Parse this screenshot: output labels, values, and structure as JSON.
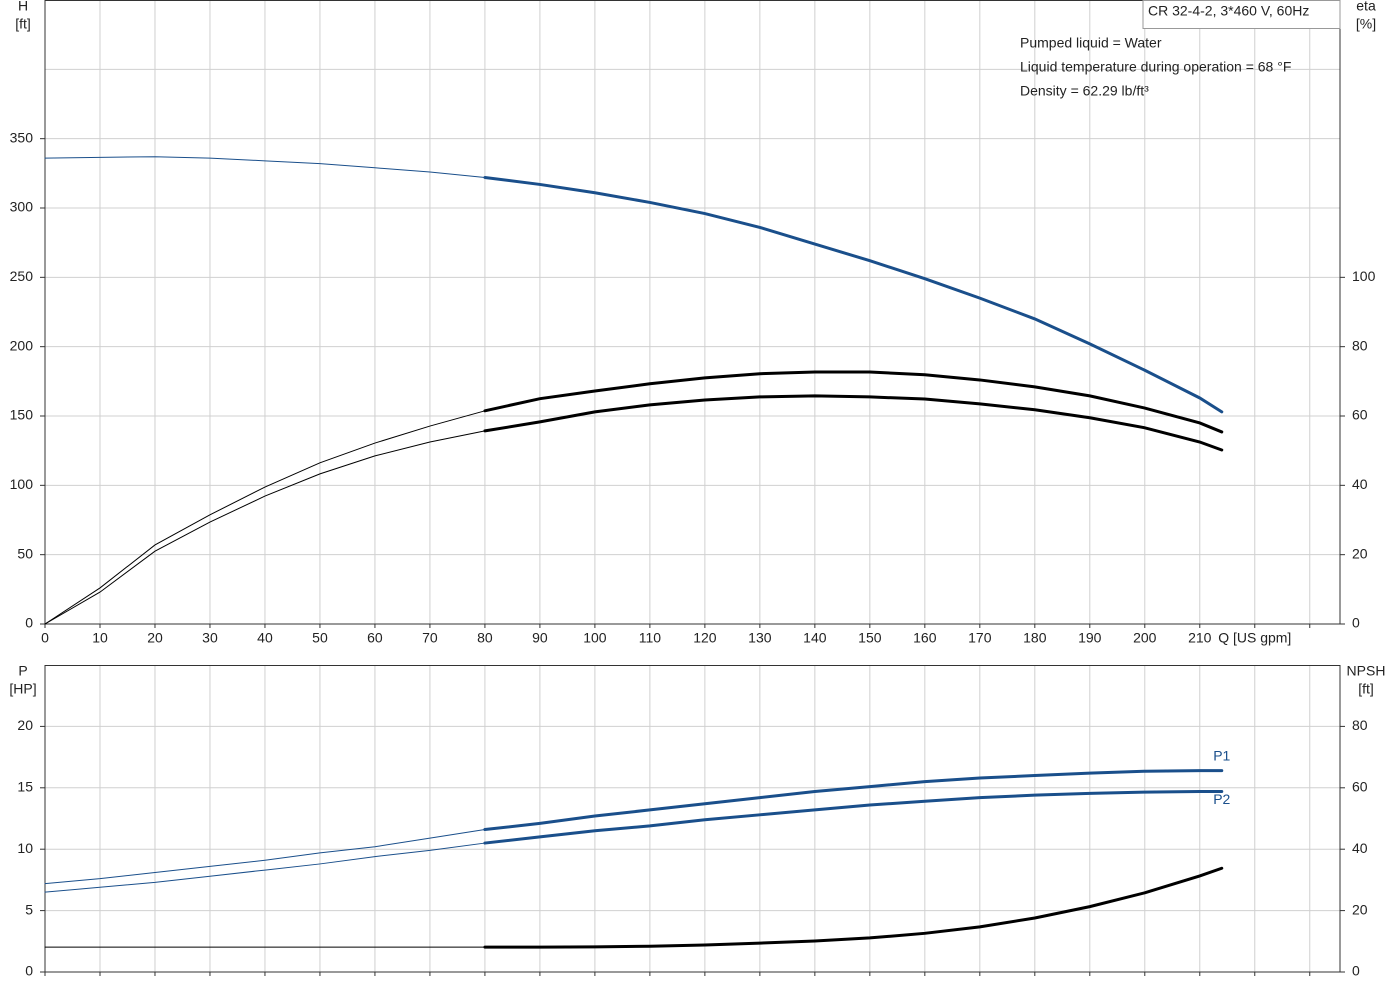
{
  "chart_data": [
    {
      "type": "line",
      "title": "CR 32-4-2, 3*460 V, 60Hz",
      "annotations": [
        "Pumped liquid = Water",
        "Liquid temperature during operation = 68 °F",
        "Density = 62.29 lb/ft³"
      ],
      "ylabel": "H",
      "yunit": "[ft]",
      "y2label": "eta",
      "y2unit": "[%]",
      "xlabel": "Q [US gpm]",
      "x": [
        0,
        10,
        20,
        30,
        40,
        50,
        60,
        70,
        80,
        90,
        100,
        110,
        120,
        130,
        140,
        150,
        160,
        170,
        180,
        190,
        200,
        210,
        214
      ],
      "xlim": [
        0,
        235.5
      ],
      "xticks": [
        0,
        10,
        20,
        30,
        40,
        50,
        60,
        70,
        80,
        90,
        100,
        110,
        120,
        130,
        140,
        150,
        160,
        170,
        180,
        190,
        200,
        210
      ],
      "xgrid": [
        0,
        10,
        20,
        30,
        40,
        50,
        60,
        70,
        80,
        90,
        100,
        110,
        120,
        130,
        140,
        150,
        160,
        170,
        180,
        190,
        200,
        210,
        220,
        230
      ],
      "ylim": [
        0,
        450
      ],
      "yticks": [
        0,
        50,
        100,
        150,
        200,
        250,
        300,
        350
      ],
      "ygrid": [
        0,
        50,
        100,
        150,
        200,
        250,
        300,
        350,
        400
      ],
      "y2lim": [
        0,
        180
      ],
      "y2ticks": [
        0,
        20,
        40,
        60,
        80,
        100
      ],
      "duty_start": 80,
      "grid": true,
      "series": [
        {
          "color": "#1a4f8b",
          "values": [
            336,
            336.5,
            337,
            336,
            334,
            332,
            329,
            326,
            322,
            317,
            311,
            304,
            296,
            286,
            274,
            262,
            249,
            235,
            220,
            202,
            183,
            163,
            153
          ]
        },
        {
          "color": "#000000",
          "axis": "y2",
          "values": [
            0,
            10.4,
            22.8,
            31.5,
            39.5,
            46.5,
            52.2,
            57.1,
            61.5,
            65,
            67.2,
            69.3,
            71,
            72.2,
            72.7,
            72.7,
            71.9,
            70.4,
            68.4,
            65.8,
            62.3,
            58,
            55.4
          ]
        },
        {
          "color": "#000000",
          "axis": "y2",
          "values": [
            0,
            9.2,
            21,
            29.4,
            36.9,
            43.3,
            48.5,
            52.5,
            55.7,
            58.3,
            61.2,
            63.2,
            64.6,
            65.5,
            65.8,
            65.5,
            64.9,
            63.5,
            61.8,
            59.5,
            56.6,
            52.5,
            50.2
          ]
        }
      ]
    },
    {
      "type": "line",
      "ylabel": "P",
      "yunit": "[HP]",
      "y2label": "NPSH",
      "y2unit": "[ft]",
      "x": [
        0,
        10,
        20,
        30,
        40,
        50,
        60,
        70,
        80,
        90,
        100,
        110,
        120,
        130,
        140,
        150,
        160,
        170,
        180,
        190,
        200,
        210,
        214
      ],
      "xlim": [
        0,
        235.5
      ],
      "xgrid": [
        0,
        10,
        20,
        30,
        40,
        50,
        60,
        70,
        80,
        90,
        100,
        110,
        120,
        130,
        140,
        150,
        160,
        170,
        180,
        190,
        200,
        210,
        220,
        230
      ],
      "ylim": [
        0,
        25
      ],
      "yticks": [
        0,
        5,
        10,
        15,
        20
      ],
      "ygrid": [
        0,
        5,
        10,
        15,
        20
      ],
      "y2lim": [
        0,
        100
      ],
      "y2ticks": [
        0,
        20,
        40,
        60,
        80
      ],
      "duty_start": 80,
      "grid": true,
      "series": [
        {
          "name": "P1",
          "color": "#1a4f8b",
          "values": [
            7.2,
            7.6,
            8.1,
            8.6,
            9.1,
            9.7,
            10.2,
            10.9,
            11.6,
            12.1,
            12.7,
            13.2,
            13.7,
            14.2,
            14.7,
            15.1,
            15.5,
            15.8,
            16,
            16.2,
            16.35,
            16.4,
            16.4
          ]
        },
        {
          "name": "P2",
          "color": "#1a4f8b",
          "values": [
            6.5,
            6.9,
            7.3,
            7.8,
            8.3,
            8.8,
            9.4,
            9.9,
            10.5,
            11,
            11.5,
            11.9,
            12.4,
            12.8,
            13.2,
            13.6,
            13.9,
            14.2,
            14.4,
            14.55,
            14.65,
            14.7,
            14.7
          ]
        },
        {
          "color": "#000000",
          "axis": "y2",
          "values": [
            8.1,
            8.1,
            8.1,
            8.1,
            8.1,
            8.1,
            8.1,
            8.1,
            8.1,
            8.1,
            8.2,
            8.4,
            8.8,
            9.4,
            10.1,
            11.1,
            12.6,
            14.7,
            17.6,
            21.3,
            25.8,
            31.3,
            33.8
          ]
        }
      ]
    }
  ]
}
